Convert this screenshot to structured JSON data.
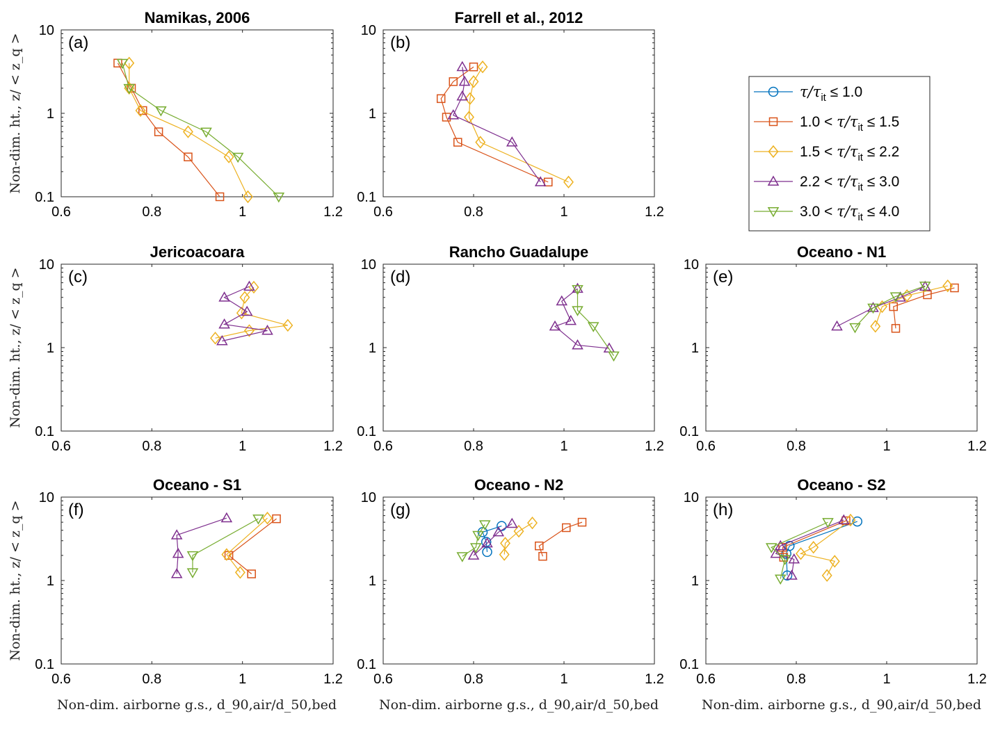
{
  "series_styles": [
    {
      "marker": "circle",
      "color": "#0072BD"
    },
    {
      "marker": "square",
      "color": "#D95319"
    },
    {
      "marker": "diamond",
      "color": "#EDB120"
    },
    {
      "marker": "triangle-up",
      "color": "#7E2F8E"
    },
    {
      "marker": "triangle-down",
      "color": "#77AC30"
    }
  ],
  "legend": [
    {
      "left": "",
      "right": " ≤ 1.0"
    },
    {
      "left": "1.0 < ",
      "right": " ≤ 1.5"
    },
    {
      "left": "1.5 < ",
      "right": " ≤ 2.2"
    },
    {
      "left": "2.2 < ",
      "right": " ≤ 3.0"
    },
    {
      "left": "3.0 < ",
      "right": " ≤ 4.0"
    }
  ],
  "ylabel": "Non-dim. ht., z/ < z_q >",
  "xlabel": "Non-dim. airborne g.s., d_90,air/d_50,bed",
  "chart_data": [
    {
      "type": "line",
      "title": "Namikas, 2006",
      "panel": "(a)",
      "xlim": [
        0.6,
        1.2
      ],
      "ylim": [
        0.1,
        10
      ],
      "yscale": "log",
      "xticks": [
        "0.6",
        "0.8",
        "1",
        "1.2"
      ],
      "yticks": [
        "0.1",
        "1",
        "10"
      ],
      "series": [
        {
          "style": 1,
          "points": [
            [
              0.95,
              0.1
            ],
            [
              0.88,
              0.3
            ],
            [
              0.815,
              0.6
            ],
            [
              0.78,
              1.08
            ],
            [
              0.755,
              2.0
            ],
            [
              0.725,
              4.0
            ]
          ]
        },
        {
          "style": 2,
          "points": [
            [
              1.012,
              0.1
            ],
            [
              0.97,
              0.3
            ],
            [
              0.88,
              0.6
            ],
            [
              0.775,
              1.08
            ],
            [
              0.75,
              2.0
            ],
            [
              0.75,
              4.0
            ]
          ]
        },
        {
          "style": 4,
          "points": [
            [
              1.08,
              0.1
            ],
            [
              0.99,
              0.3
            ],
            [
              0.92,
              0.6
            ],
            [
              0.82,
              1.08
            ],
            [
              0.75,
              2.0
            ],
            [
              0.735,
              4.0
            ]
          ]
        }
      ]
    },
    {
      "type": "line",
      "title": "Farrell et al., 2012",
      "panel": "(b)",
      "xlim": [
        0.6,
        1.2
      ],
      "ylim": [
        0.1,
        10
      ],
      "yscale": "log",
      "xticks": [
        "0.6",
        "0.8",
        "1",
        "1.2"
      ],
      "yticks": [
        "0.1",
        "1",
        "10"
      ],
      "series": [
        {
          "style": 1,
          "points": [
            [
              0.965,
              0.15
            ],
            [
              0.765,
              0.45
            ],
            [
              0.74,
              0.9
            ],
            [
              0.728,
              1.5
            ],
            [
              0.755,
              2.4
            ],
            [
              0.8,
              3.6
            ]
          ]
        },
        {
          "style": 2,
          "points": [
            [
              1.01,
              0.15
            ],
            [
              0.815,
              0.45
            ],
            [
              0.79,
              0.9
            ],
            [
              0.792,
              1.5
            ],
            [
              0.8,
              2.4
            ],
            [
              0.82,
              3.6
            ]
          ]
        },
        {
          "style": 3,
          "points": [
            [
              0.948,
              0.15
            ],
            [
              0.885,
              0.45
            ],
            [
              0.755,
              0.95
            ],
            [
              0.775,
              1.6
            ],
            [
              0.78,
              2.4
            ],
            [
              0.775,
              3.6
            ]
          ]
        }
      ]
    },
    {
      "type": "line",
      "title": "Jericoacoara",
      "panel": "(c)",
      "xlim": [
        0.6,
        1.2
      ],
      "ylim": [
        0.1,
        10
      ],
      "yscale": "log",
      "xticks": [
        "0.6",
        "0.8",
        "1",
        "1.2"
      ],
      "yticks": [
        "0.1",
        "1",
        "10"
      ],
      "series": [
        {
          "style": 2,
          "points": [
            [
              0.94,
              1.3
            ],
            [
              1.015,
              1.6
            ],
            [
              1.1,
              1.85
            ],
            [
              0.998,
              2.6
            ],
            [
              1.005,
              4.0
            ],
            [
              1.025,
              5.3
            ]
          ]
        },
        {
          "style": 3,
          "points": [
            [
              0.955,
              1.2
            ],
            [
              1.055,
              1.6
            ],
            [
              0.96,
              1.9
            ],
            [
              1.01,
              2.7
            ],
            [
              0.96,
              4.0
            ],
            [
              1.015,
              5.4
            ]
          ]
        }
      ]
    },
    {
      "type": "line",
      "title": "Rancho Guadalupe",
      "panel": "(d)",
      "xlim": [
        0.6,
        1.2
      ],
      "ylim": [
        0.1,
        10
      ],
      "yscale": "log",
      "xticks": [
        "0.6",
        "0.8",
        "1",
        "1.2"
      ],
      "yticks": [
        "0.1",
        "1",
        "10"
      ],
      "series": [
        {
          "style": 3,
          "points": [
            [
              1.1,
              0.98
            ],
            [
              1.03,
              1.07
            ],
            [
              0.98,
              1.8
            ],
            [
              1.015,
              2.1
            ],
            [
              0.995,
              3.6
            ],
            [
              1.03,
              5.1
            ]
          ]
        },
        {
          "style": 4,
          "points": [
            [
              1.11,
              0.8
            ],
            [
              1.065,
              1.8
            ],
            [
              1.03,
              2.8
            ],
            [
              1.03,
              5.0
            ]
          ]
        }
      ]
    },
    {
      "type": "line",
      "title": "Oceano - N1",
      "panel": "(e)",
      "xlim": [
        0.6,
        1.2
      ],
      "ylim": [
        0.1,
        10
      ],
      "yscale": "log",
      "xticks": [
        "0.6",
        "0.8",
        "1",
        "1.2"
      ],
      "yticks": [
        "0.1",
        "1",
        "10"
      ],
      "series": [
        {
          "style": 1,
          "points": [
            [
              1.02,
              1.7
            ],
            [
              1.015,
              3.1
            ],
            [
              1.09,
              4.3
            ],
            [
              1.15,
              5.2
            ]
          ]
        },
        {
          "style": 2,
          "points": [
            [
              0.975,
              1.8
            ],
            [
              0.99,
              3.1
            ],
            [
              1.045,
              4.2
            ],
            [
              1.135,
              5.5
            ]
          ]
        },
        {
          "style": 3,
          "points": [
            [
              0.89,
              1.8
            ],
            [
              0.97,
              3.0
            ],
            [
              1.03,
              4.0
            ],
            [
              1.085,
              5.4
            ]
          ]
        },
        {
          "style": 4,
          "points": [
            [
              0.93,
              1.75
            ],
            [
              0.97,
              3.0
            ],
            [
              1.02,
              4.1
            ],
            [
              1.085,
              5.5
            ]
          ]
        }
      ]
    },
    {
      "type": "line",
      "title": "Oceano - S1",
      "panel": "(f)",
      "xlim": [
        0.6,
        1.2
      ],
      "ylim": [
        0.1,
        10
      ],
      "yscale": "log",
      "xticks": [
        "0.6",
        "0.8",
        "1",
        "1.2"
      ],
      "yticks": [
        "0.1",
        "1",
        "10"
      ],
      "series": [
        {
          "style": 1,
          "points": [
            [
              1.02,
              1.2
            ],
            [
              0.97,
              2.0
            ],
            [
              1.075,
              5.5
            ]
          ]
        },
        {
          "style": 2,
          "points": [
            [
              0.995,
              1.25
            ],
            [
              0.965,
              2.05
            ],
            [
              1.055,
              5.6
            ]
          ]
        },
        {
          "style": 3,
          "points": [
            [
              0.855,
              1.2
            ],
            [
              0.858,
              2.1
            ],
            [
              0.855,
              3.5
            ],
            [
              0.965,
              5.6
            ]
          ]
        },
        {
          "style": 4,
          "points": [
            [
              0.89,
              1.25
            ],
            [
              0.89,
              2.0
            ],
            [
              1.035,
              5.5
            ]
          ]
        }
      ]
    },
    {
      "type": "line",
      "title": "Oceano - N2",
      "panel": "(g)",
      "xlim": [
        0.6,
        1.2
      ],
      "ylim": [
        0.1,
        10
      ],
      "yscale": "log",
      "xticks": [
        "0.6",
        "0.8",
        "1",
        "1.2"
      ],
      "yticks": [
        "0.1",
        "1",
        "10"
      ],
      "series": [
        {
          "style": 0,
          "points": [
            [
              0.83,
              2.2
            ],
            [
              0.828,
              2.9
            ],
            [
              0.82,
              3.8
            ],
            [
              0.862,
              4.5
            ]
          ]
        },
        {
          "style": 1,
          "points": [
            [
              0.953,
              1.95
            ],
            [
              0.945,
              2.6
            ],
            [
              1.005,
              4.3
            ],
            [
              1.04,
              5.0
            ]
          ]
        },
        {
          "style": 2,
          "points": [
            [
              0.868,
              2.05
            ],
            [
              0.87,
              2.8
            ],
            [
              0.9,
              3.9
            ],
            [
              0.93,
              4.9
            ]
          ]
        },
        {
          "style": 3,
          "points": [
            [
              0.8,
              2.0
            ],
            [
              0.83,
              2.8
            ],
            [
              0.855,
              3.8
            ],
            [
              0.885,
              4.8
            ]
          ]
        },
        {
          "style": 4,
          "points": [
            [
              0.775,
              1.95
            ],
            [
              0.805,
              2.5
            ],
            [
              0.81,
              3.5
            ],
            [
              0.825,
              4.7
            ]
          ]
        }
      ]
    },
    {
      "type": "line",
      "title": "Oceano - S2",
      "panel": "(h)",
      "xlim": [
        0.6,
        1.2
      ],
      "ylim": [
        0.1,
        10
      ],
      "yscale": "log",
      "xticks": [
        "0.6",
        "0.8",
        "1",
        "1.2"
      ],
      "yticks": [
        "0.1",
        "1",
        "10"
      ],
      "series": [
        {
          "style": 0,
          "points": [
            [
              0.78,
              1.15
            ],
            [
              0.778,
              2.1
            ],
            [
              0.785,
              2.6
            ],
            [
              0.935,
              5.1
            ]
          ]
        },
        {
          "style": 1,
          "points": [
            [
              0.772,
              1.9
            ],
            [
              0.77,
              2.5
            ],
            [
              0.91,
              5.2
            ]
          ]
        },
        {
          "style": 2,
          "points": [
            [
              0.868,
              1.15
            ],
            [
              0.885,
              1.7
            ],
            [
              0.81,
              2.1
            ],
            [
              0.838,
              2.5
            ],
            [
              0.92,
              5.3
            ]
          ]
        },
        {
          "style": 3,
          "points": [
            [
              0.79,
              1.15
            ],
            [
              0.795,
              1.8
            ],
            [
              0.755,
              2.1
            ],
            [
              0.765,
              2.6
            ],
            [
              0.905,
              5.3
            ]
          ]
        },
        {
          "style": 4,
          "points": [
            [
              0.765,
              1.05
            ],
            [
              0.775,
              1.8
            ],
            [
              0.745,
              2.5
            ],
            [
              0.87,
              5.0
            ]
          ]
        }
      ]
    }
  ]
}
